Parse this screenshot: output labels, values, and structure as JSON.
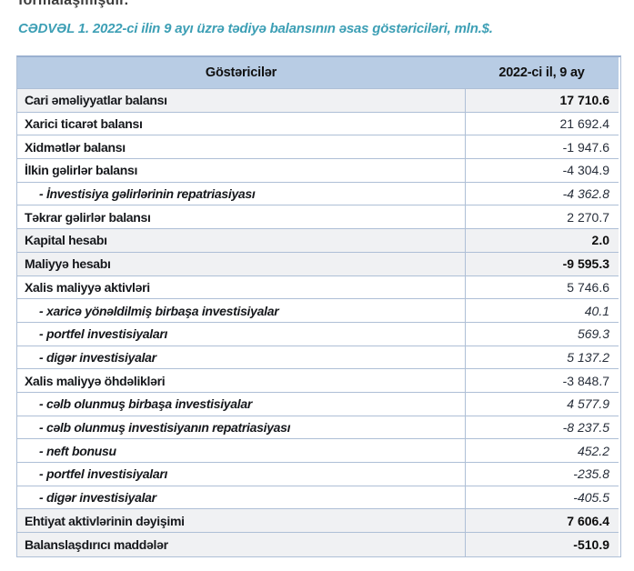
{
  "page": {
    "top_text": "formalaşmışdır.",
    "caption": "CƏDVƏL 1. 2022-ci ilin 9 ayı üzrə tədiyə balansının əsas göstəriciləri, mln.$."
  },
  "colors": {
    "caption_teal": "#3d9fb5",
    "header_bg": "#b8cce4",
    "shaded_row_bg": "#f0f1f3",
    "row_border": "#aebfd6",
    "table_top_border": "#9ab0d0"
  },
  "table": {
    "columns": {
      "indicator": "Göstəricilər",
      "period": "2022-ci il, 9 ay"
    },
    "rows": [
      {
        "label": "Cari əməliyyatlar balansı",
        "value": "17 710.6",
        "style": "total"
      },
      {
        "label": "Xarici ticarət balansı",
        "value": "21 692.4",
        "style": "section"
      },
      {
        "label": "Xidmətlər balansı",
        "value": "-1 947.6",
        "style": "section"
      },
      {
        "label": "İlkin gəlirlər balansı",
        "value": "-4 304.9",
        "style": "section"
      },
      {
        "label": "- İnvestisiya gəlirlərinin repatriasiyası",
        "value": "-4 362.8",
        "style": "sub"
      },
      {
        "label": "Təkrar gəlirlər balansı",
        "value": "2 270.7",
        "style": "section"
      },
      {
        "label": "Kapital hesabı",
        "value": "2.0",
        "style": "total"
      },
      {
        "label": "Maliyyə hesabı",
        "value": "-9 595.3",
        "style": "total"
      },
      {
        "label": "Xalis maliyyə aktivləri",
        "value": "5 746.6",
        "style": "section"
      },
      {
        "label": "- xaricə yönəldilmiş birbaşa investisiyalar",
        "value": "40.1",
        "style": "sub"
      },
      {
        "label": "- portfel investisiyaları",
        "value": "569.3",
        "style": "sub"
      },
      {
        "label": "- digər investisiyalar",
        "value": "5 137.2",
        "style": "sub"
      },
      {
        "label": "Xalis maliyyə öhdəlikləri",
        "value": "-3 848.7",
        "style": "section"
      },
      {
        "label": "- cəlb olunmuş birbaşa investisiyalar",
        "value": "4 577.9",
        "style": "sub"
      },
      {
        "label": "- cəlb olunmuş investisiyanın repatriasiyası",
        "value": "-8 237.5",
        "style": "sub"
      },
      {
        "label": "- neft bonusu",
        "value": "452.2",
        "style": "sub"
      },
      {
        "label": "- portfel investisiyaları",
        "value": "-235.8",
        "style": "sub"
      },
      {
        "label": "- digər investisiyalar",
        "value": "-405.5",
        "style": "sub"
      },
      {
        "label": "Ehtiyat aktivlərinin dəyişimi",
        "value": "7 606.4",
        "style": "total"
      },
      {
        "label": "Balanslaşdırıcı maddələr",
        "value": "-510.9",
        "style": "total"
      }
    ]
  }
}
